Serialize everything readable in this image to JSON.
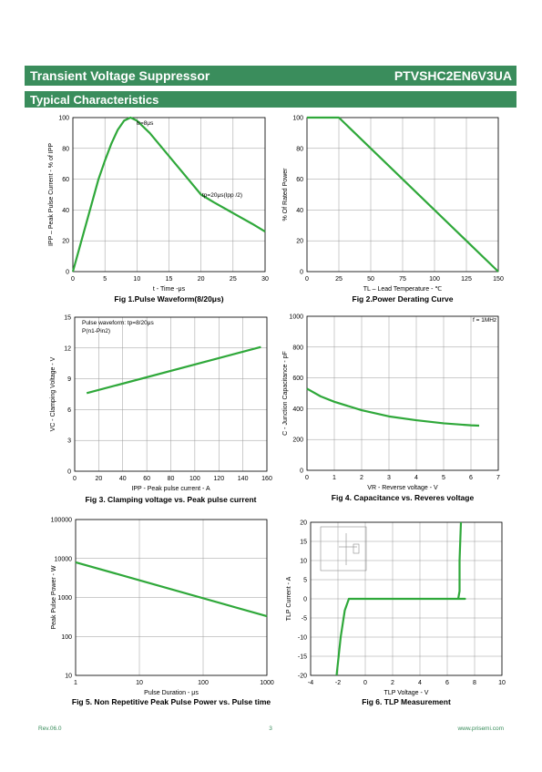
{
  "header": {
    "title": "Transient Voltage Suppressor",
    "part": "PTVSHC2EN6V3UA",
    "section": "Typical Characteristics"
  },
  "footer": {
    "rev": "Rev.06.0",
    "page": "3",
    "site": "www.prisemi.com"
  },
  "chart_data": [
    {
      "type": "line",
      "title": "Fig 1.Pulse Waveform(8/20μs)",
      "x_label": "t - Time -μs",
      "y_label": "IPP – Peak Pulse Current - % of IPP",
      "annotations": [
        "tr=8μs",
        "tp=20μs(Ipp /2)"
      ],
      "color": "#2fa83a",
      "grid": true,
      "x": [
        0,
        1,
        2,
        3,
        4,
        5,
        6,
        7,
        8,
        9,
        10,
        12,
        14,
        16,
        18,
        20,
        22,
        25,
        28,
        30
      ],
      "values": [
        0,
        15,
        30,
        45,
        60,
        72,
        83,
        92,
        98,
        100,
        98,
        90,
        80,
        70,
        60,
        50,
        45,
        38,
        31,
        26
      ],
      "xlim": [
        0,
        30
      ],
      "xticks": [
        0,
        5,
        10,
        15,
        20,
        25,
        30
      ],
      "ylim": [
        0,
        100
      ],
      "yticks": [
        0,
        20,
        40,
        60,
        80,
        100
      ]
    },
    {
      "type": "line",
      "title": "Fig 2.Power Derating Curve",
      "x_label": "TL – Lead Temperature - ℃",
      "y_label": "% Of Rated Power",
      "color": "#2fa83a",
      "grid": true,
      "x": [
        0,
        25,
        150
      ],
      "values": [
        100,
        100,
        0
      ],
      "xlim": [
        0,
        150
      ],
      "xticks": [
        0,
        25,
        50,
        75,
        100,
        125,
        150
      ],
      "ylim": [
        0,
        100
      ],
      "yticks": [
        0,
        20,
        40,
        60,
        80,
        100
      ]
    },
    {
      "type": "line",
      "title": "Fig 3. Clamping voltage vs. Peak pulse current",
      "x_label": "IPP - Peak pulse current - A",
      "y_label": "VC - Clamping Voltage - V",
      "annotations": [
        "Pulse waveform: tp=8/20μs",
        "P(n1-Pin2)"
      ],
      "color": "#2fa83a",
      "grid": true,
      "x": [
        10,
        155
      ],
      "values": [
        7.6,
        12.1
      ],
      "xlim": [
        0,
        160
      ],
      "xticks": [
        0,
        20,
        40,
        60,
        80,
        100,
        120,
        140,
        160
      ],
      "ylim": [
        0,
        15
      ],
      "yticks": [
        0,
        3,
        6,
        9,
        12,
        15
      ]
    },
    {
      "type": "line",
      "title": "Fig 4. Capacitance vs. Reveres voltage",
      "x_label": "VR - Reverse voltage - V",
      "y_label": "C - Junction Capacitance - pF",
      "annotations": [
        "f = 1MHz"
      ],
      "color": "#2fa83a",
      "grid": true,
      "x": [
        0,
        0.5,
        1,
        2,
        3,
        4,
        5,
        6,
        6.3
      ],
      "values": [
        530,
        480,
        445,
        390,
        350,
        325,
        305,
        292,
        290
      ],
      "xlim": [
        0,
        7
      ],
      "xticks": [
        0,
        1,
        2,
        3,
        4,
        5,
        6,
        7
      ],
      "ylim": [
        0,
        1000
      ],
      "yticks": [
        0,
        200,
        400,
        600,
        800,
        1000
      ]
    },
    {
      "type": "line",
      "title": "Fig 5. Non Repetitive Peak Pulse Power vs. Pulse time",
      "x_label": "Pulse Duration - μs",
      "y_label": "Peak Pulse Power - W",
      "color": "#2fa83a",
      "grid": true,
      "log_x": true,
      "log_y": true,
      "x": [
        1,
        1000
      ],
      "values": [
        8000,
        330
      ],
      "xlim": [
        1,
        1000
      ],
      "xticks": [
        1,
        10,
        100,
        1000
      ],
      "ylim": [
        10,
        100000
      ],
      "yticks": [
        10,
        100,
        1000,
        10000,
        100000
      ]
    },
    {
      "type": "line",
      "title": "Fig 6. TLP Measurement",
      "x_label": "TLP Voltage - V",
      "y_label": "TLP Current - A",
      "color": "#2fa83a",
      "grid": true,
      "x": [
        -2.1,
        -1.8,
        -1.5,
        -1.2,
        0,
        6.8,
        7.3,
        6.8,
        6.9,
        6.9,
        7
      ],
      "values": [
        -20,
        -10,
        -3,
        0,
        0,
        0,
        0,
        0,
        2,
        10,
        20
      ],
      "xlim": [
        -4,
        10
      ],
      "xticks": [
        -4,
        -2,
        0,
        2,
        4,
        6,
        8,
        10
      ],
      "ylim": [
        -20,
        20
      ],
      "yticks": [
        -20,
        -15,
        -10,
        -5,
        0,
        5,
        10,
        15,
        20
      ]
    }
  ]
}
